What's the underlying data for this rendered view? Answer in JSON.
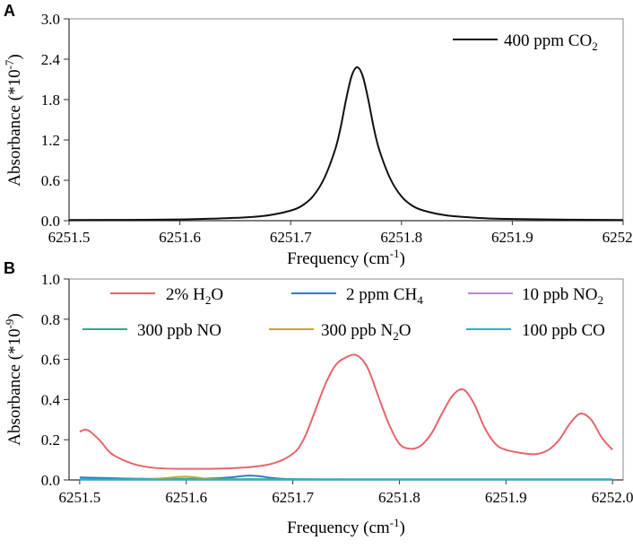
{
  "chart_data": [
    {
      "type": "line",
      "panel_label": "A",
      "ylabel_prefix": "Absorbance (*10",
      "ylabel_exp": "-7",
      "ylabel_suffix": ")",
      "xlabel_prefix": "Frequency (cm",
      "xlabel_exp": "-1",
      "xlabel_suffix": ")",
      "xlim": [
        6251.5,
        6252.0
      ],
      "ylim": [
        0.0,
        3.0
      ],
      "xticks": [
        "6251.5",
        "6251.6",
        "6251.7",
        "6251.8",
        "6251.9",
        "6252.0"
      ],
      "yticks": [
        "0.0",
        "0.6",
        "1.2",
        "1.8",
        "2.4",
        "3.0"
      ],
      "legend_position": "top-right",
      "series": [
        {
          "name": "400 ppm CO2",
          "label_parts": [
            "400 ppm CO",
            "2",
            ""
          ],
          "color": "#111111",
          "x": [
            6251.5,
            6251.55,
            6251.6,
            6251.63,
            6251.66,
            6251.68,
            6251.7,
            6251.71,
            6251.72,
            6251.73,
            6251.74,
            6251.745,
            6251.75,
            6251.755,
            6251.76,
            6251.765,
            6251.77,
            6251.775,
            6251.78,
            6251.79,
            6251.8,
            6251.81,
            6251.82,
            6251.84,
            6251.87,
            6251.9,
            6251.95,
            6252.0
          ],
          "y": [
            0.01,
            0.012,
            0.018,
            0.03,
            0.05,
            0.08,
            0.15,
            0.22,
            0.36,
            0.62,
            1.05,
            1.38,
            1.8,
            2.15,
            2.28,
            2.15,
            1.8,
            1.38,
            1.05,
            0.62,
            0.36,
            0.22,
            0.15,
            0.08,
            0.04,
            0.025,
            0.015,
            0.01
          ]
        }
      ]
    },
    {
      "type": "line",
      "panel_label": "B",
      "ylabel_prefix": "Absorbance (*10",
      "ylabel_exp": "-9",
      "ylabel_suffix": ")",
      "xlabel_prefix": "Frequency (cm",
      "xlabel_exp": "-1",
      "xlabel_suffix": ")",
      "xlim": [
        6251.49,
        6252.01
      ],
      "ylim": [
        0.0,
        1.0
      ],
      "xticks": [
        "6251.5",
        "6251.6",
        "6251.7",
        "6251.8",
        "6251.9",
        "6252.0"
      ],
      "yticks": [
        "0.0",
        "0.2",
        "0.4",
        "0.6",
        "0.8",
        "1.0"
      ],
      "legend_position": "top",
      "series": [
        {
          "name": "2% H2O",
          "label_parts": [
            "2% H",
            "2",
            "O"
          ],
          "color": "#e8636b",
          "x": [
            6251.5,
            6251.505,
            6251.51,
            6251.52,
            6251.53,
            6251.55,
            6251.57,
            6251.6,
            6251.65,
            6251.68,
            6251.7,
            6251.71,
            6251.72,
            6251.73,
            6251.74,
            6251.75,
            6251.76,
            6251.77,
            6251.78,
            6251.79,
            6251.8,
            6251.81,
            6251.82,
            6251.83,
            6251.84,
            6251.85,
            6251.86,
            6251.87,
            6251.88,
            6251.89,
            6251.9,
            6251.92,
            6251.93,
            6251.94,
            6251.95,
            6251.96,
            6251.97,
            6251.98,
            6251.99,
            6252.0
          ],
          "y": [
            0.24,
            0.25,
            0.24,
            0.19,
            0.13,
            0.08,
            0.06,
            0.055,
            0.06,
            0.08,
            0.13,
            0.2,
            0.33,
            0.47,
            0.57,
            0.61,
            0.62,
            0.56,
            0.42,
            0.28,
            0.18,
            0.155,
            0.17,
            0.23,
            0.33,
            0.42,
            0.45,
            0.38,
            0.26,
            0.18,
            0.15,
            0.13,
            0.13,
            0.15,
            0.2,
            0.28,
            0.33,
            0.3,
            0.21,
            0.15
          ]
        },
        {
          "name": "2 ppm CH4",
          "label_parts": [
            "2 ppm CH",
            "4",
            ""
          ],
          "color": "#2b7fc6",
          "x": [
            6251.5,
            6251.52,
            6251.55,
            6251.58,
            6251.6,
            6251.62,
            6251.64,
            6251.65,
            6251.66,
            6251.67,
            6251.68,
            6251.7,
            6251.75,
            6251.8,
            6251.9,
            6252.0
          ],
          "y": [
            0.012,
            0.01,
            0.006,
            0.005,
            0.005,
            0.007,
            0.012,
            0.018,
            0.022,
            0.018,
            0.01,
            0.004,
            0.003,
            0.003,
            0.003,
            0.003
          ]
        },
        {
          "name": "10 ppb NO2",
          "label_parts": [
            "10 ppb NO",
            "2",
            ""
          ],
          "color": "#b58ad8",
          "x": [
            6251.5,
            6251.75,
            6252.0
          ],
          "y": [
            0.001,
            0.001,
            0.001
          ]
        },
        {
          "name": "300 ppb NO",
          "label_parts": [
            "300 ppb NO",
            "",
            ""
          ],
          "color": "#2ea88a",
          "x": [
            6251.5,
            6251.6,
            6251.75,
            6251.9,
            6252.0
          ],
          "y": [
            0.003,
            0.004,
            0.003,
            0.003,
            0.003
          ]
        },
        {
          "name": "300 ppb N2O",
          "label_parts": [
            "300 ppb N",
            "2",
            "O"
          ],
          "color": "#c9a227",
          "x": [
            6251.5,
            6251.56,
            6251.58,
            6251.59,
            6251.6,
            6251.61,
            6251.62,
            6251.64,
            6251.7,
            6251.8,
            6252.0
          ],
          "y": [
            0.002,
            0.003,
            0.009,
            0.014,
            0.016,
            0.012,
            0.006,
            0.003,
            0.002,
            0.002,
            0.002
          ]
        },
        {
          "name": "100 ppb CO",
          "label_parts": [
            "100 ppb CO",
            "",
            ""
          ],
          "color": "#19b9c8",
          "x": [
            6251.5,
            6251.75,
            6252.0
          ],
          "y": [
            0.002,
            0.002,
            0.002
          ]
        }
      ]
    }
  ]
}
